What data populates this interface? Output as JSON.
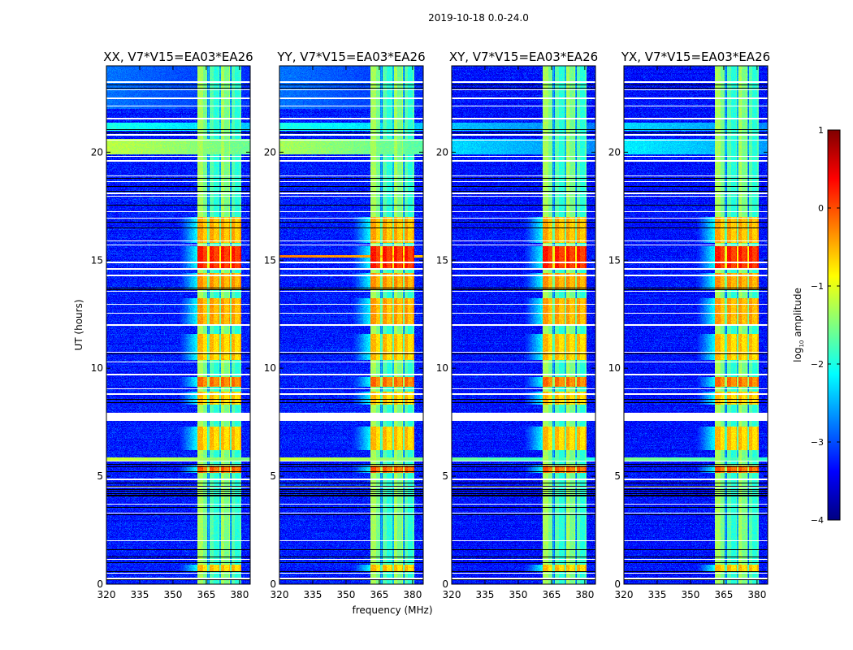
{
  "chart_data": {
    "type": "heatmap",
    "title": "2019-10-18 0.0-24.0",
    "xlabel": "frequency (MHz)",
    "ylabel": "UT (hours)",
    "xlim": [
      320,
      384.8
    ],
    "ylim": [
      0,
      24
    ],
    "xticks": [
      "320",
      "335",
      "350",
      "365",
      "380"
    ],
    "xtick_values": [
      320,
      335,
      350,
      365,
      380
    ],
    "yticks": [
      "0",
      "5",
      "10",
      "15",
      "20"
    ],
    "ytick_values": [
      0,
      5,
      10,
      15,
      20
    ],
    "panels": [
      {
        "title": "XX, V7*V15=EA03*EA26",
        "background": -3.25,
        "wide_rows": [
          [
            19.9,
            20.6,
            -1.2
          ],
          [
            21.0,
            21.35,
            -2.0
          ],
          [
            5.72,
            5.85,
            -1.1
          ],
          [
            22.0,
            24.0,
            -2.8
          ]
        ]
      },
      {
        "title": "YY, V7*V15=EA03*EA26",
        "background": -3.25,
        "wide_rows": [
          [
            19.9,
            20.6,
            -1.3
          ],
          [
            21.0,
            21.35,
            -2.0
          ],
          [
            5.72,
            5.85,
            -1.1
          ],
          [
            15.12,
            15.25,
            -0.2
          ],
          [
            22.0,
            24.0,
            -2.8
          ]
        ]
      },
      {
        "title": "XY, V7*V15=EA03*EA26",
        "background": -3.3,
        "wide_rows": [
          [
            19.9,
            20.6,
            -2.3
          ],
          [
            21.0,
            21.35,
            -2.4
          ],
          [
            5.72,
            5.85,
            -1.6
          ]
        ]
      },
      {
        "title": "YX, V7*V15=EA03*EA26",
        "background": -3.3,
        "wide_rows": [
          [
            19.9,
            20.6,
            -2.2
          ],
          [
            21.0,
            21.35,
            -2.3
          ],
          [
            5.72,
            5.85,
            -1.5
          ]
        ]
      }
    ],
    "rfi_band": {
      "freq_range": [
        361,
        380.7
      ],
      "base_level": -1.3,
      "notches_mhz": [
        366,
        371.2,
        376
      ]
    },
    "strong_rows": [
      [
        14.55,
        15.65,
        0.3
      ],
      [
        13.6,
        14.4,
        -0.3
      ],
      [
        12.0,
        13.25,
        -0.35
      ],
      [
        15.8,
        17.0,
        -0.4
      ],
      [
        10.4,
        11.6,
        -0.5
      ],
      [
        9.15,
        9.6,
        -0.1
      ],
      [
        8.3,
        8.9,
        -0.5
      ],
      [
        6.2,
        7.3,
        -0.5
      ],
      [
        5.15,
        5.5,
        0.0
      ],
      [
        0.55,
        0.9,
        -0.5
      ]
    ],
    "flagged_gap_hours": [
      7.55,
      7.95
    ],
    "white_rows": [
      0.26,
      0.5,
      1.15,
      2.0,
      3.3,
      3.7,
      4.5,
      4.85,
      5.7,
      8.8,
      9.05,
      9.7,
      10.3,
      10.75,
      12.0,
      12.55,
      12.95,
      13.55,
      14.3,
      14.6,
      14.9,
      15.7,
      15.9,
      16.95,
      17.25,
      17.95,
      18.1,
      18.65,
      18.9,
      19.6,
      19.8,
      20.55,
      20.8,
      21.55,
      22.15,
      22.5,
      22.9,
      23.25
    ],
    "black_rows": [
      0.22,
      0.6,
      1.0,
      1.25,
      1.6,
      3.2,
      3.55,
      4.1,
      4.2,
      4.3,
      4.4,
      4.55,
      4.7,
      5.2,
      5.45,
      5.55,
      8.4,
      8.55,
      10.65,
      13.65,
      13.72,
      16.5,
      16.75,
      17.55,
      18.2,
      18.4,
      18.8,
      20.9,
      21.05,
      22.95,
      23.1
    ],
    "colorbar": {
      "label": "log10 amplitude",
      "label_main": "log",
      "label_sub": "10",
      "label_rest": " amplitude",
      "range": [
        -4,
        1
      ],
      "ticks": [
        "−4",
        "−3",
        "−2",
        "−1",
        "0",
        "1"
      ],
      "tick_values": [
        -4,
        -3,
        -2,
        -1,
        0,
        1
      ],
      "colormap": "jet"
    }
  }
}
